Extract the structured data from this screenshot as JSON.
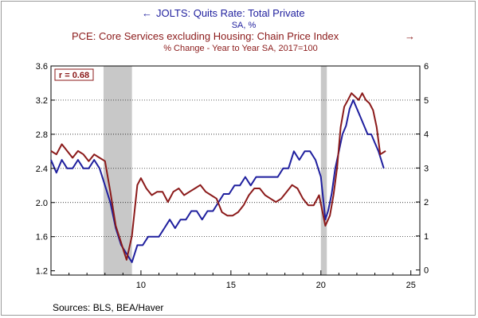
{
  "chart_data": {
    "type": "line",
    "legend": [
      {
        "arrow": "←",
        "text": "JOLTS: Quits Rate: Total Private",
        "sub": "SA, %",
        "color": "#1f1f9e",
        "axis": "left"
      },
      {
        "arrow": "→",
        "text": "PCE: Core Services excluding Housing: Chain Price Index",
        "sub": "% Change - Year to Year   SA, 2017=100",
        "color": "#8b1a1a",
        "axis": "right"
      }
    ],
    "correlation_label": "r = 0.68",
    "source": "Sources:  BLS, BEA/Haver",
    "x_range": [
      2005,
      2025.5
    ],
    "x_ticks": [
      {
        "v": 2010,
        "label": "10"
      },
      {
        "v": 2015,
        "label": "15"
      },
      {
        "v": 2020,
        "label": "20"
      },
      {
        "v": 2025,
        "label": "25"
      }
    ],
    "y_left": {
      "range": [
        1.15,
        3.6
      ],
      "ticks": [
        "3.6",
        "3.2",
        "2.8",
        "2.4",
        "2.0",
        "1.6",
        "1.2"
      ]
    },
    "y_right": {
      "range": [
        -0.15,
        6.0
      ],
      "ticks": [
        "6",
        "5",
        "4",
        "3",
        "2",
        "1",
        "0"
      ]
    },
    "grid": "horizontal dotted",
    "recessions": [
      [
        2007.92,
        2009.5
      ],
      [
        2020.0,
        2020.33
      ]
    ],
    "series": [
      {
        "name": "JOLTS: Quits Rate: Total Private",
        "axis": "left",
        "color": "#1f1f9e",
        "x": [
          2005.0,
          2005.3,
          2005.6,
          2005.9,
          2006.2,
          2006.5,
          2006.8,
          2007.1,
          2007.4,
          2007.7,
          2008.0,
          2008.3,
          2008.6,
          2008.9,
          2009.2,
          2009.5,
          2009.8,
          2010.1,
          2010.4,
          2010.7,
          2011.0,
          2011.3,
          2011.6,
          2011.9,
          2012.2,
          2012.5,
          2012.8,
          2013.1,
          2013.4,
          2013.7,
          2014.0,
          2014.3,
          2014.6,
          2014.9,
          2015.2,
          2015.5,
          2015.8,
          2016.1,
          2016.4,
          2016.7,
          2017.0,
          2017.3,
          2017.6,
          2017.9,
          2018.2,
          2018.5,
          2018.8,
          2019.1,
          2019.4,
          2019.7,
          2020.0,
          2020.25,
          2020.4,
          2020.6,
          2020.8,
          2021.0,
          2021.2,
          2021.4,
          2021.6,
          2021.8,
          2022.0,
          2022.2,
          2022.4,
          2022.6,
          2022.8,
          2023.0,
          2023.2,
          2023.5
        ],
        "values": [
          2.5,
          2.35,
          2.5,
          2.4,
          2.4,
          2.5,
          2.4,
          2.4,
          2.5,
          2.4,
          2.2,
          2.0,
          1.7,
          1.5,
          1.4,
          1.3,
          1.5,
          1.5,
          1.6,
          1.6,
          1.6,
          1.7,
          1.8,
          1.7,
          1.8,
          1.8,
          1.9,
          1.9,
          1.8,
          1.9,
          1.9,
          2.0,
          2.1,
          2.1,
          2.2,
          2.2,
          2.3,
          2.2,
          2.3,
          2.3,
          2.3,
          2.3,
          2.3,
          2.4,
          2.4,
          2.6,
          2.5,
          2.6,
          2.6,
          2.5,
          2.3,
          1.8,
          1.9,
          2.1,
          2.4,
          2.6,
          2.8,
          2.9,
          3.1,
          3.2,
          3.1,
          3.0,
          2.9,
          2.8,
          2.8,
          2.7,
          2.6,
          2.4
        ]
      },
      {
        "name": "PCE: Core Services excluding Housing: Chain Price Index",
        "axis": "right",
        "color": "#8b1a1a",
        "x": [
          2005.0,
          2005.3,
          2005.6,
          2005.9,
          2006.2,
          2006.5,
          2006.8,
          2007.1,
          2007.4,
          2007.7,
          2008.0,
          2008.3,
          2008.6,
          2008.9,
          2009.2,
          2009.5,
          2009.8,
          2010.0,
          2010.3,
          2010.6,
          2010.9,
          2011.2,
          2011.5,
          2011.8,
          2012.1,
          2012.4,
          2012.7,
          2013.0,
          2013.3,
          2013.6,
          2013.9,
          2014.2,
          2014.5,
          2014.8,
          2015.1,
          2015.4,
          2015.7,
          2016.0,
          2016.3,
          2016.6,
          2016.9,
          2017.2,
          2017.5,
          2017.8,
          2018.1,
          2018.4,
          2018.7,
          2019.0,
          2019.3,
          2019.6,
          2019.9,
          2020.25,
          2020.5,
          2020.7,
          2020.9,
          2021.1,
          2021.3,
          2021.5,
          2021.7,
          2021.9,
          2022.1,
          2022.3,
          2022.5,
          2022.7,
          2022.9,
          2023.1,
          2023.3,
          2023.6
        ],
        "values": [
          3.5,
          3.4,
          3.7,
          3.5,
          3.3,
          3.5,
          3.4,
          3.2,
          3.4,
          3.3,
          3.2,
          2.3,
          1.3,
          0.8,
          0.3,
          1.0,
          2.5,
          2.7,
          2.4,
          2.2,
          2.3,
          2.3,
          2.0,
          2.3,
          2.4,
          2.2,
          2.3,
          2.4,
          2.5,
          2.3,
          2.2,
          2.1,
          1.7,
          1.6,
          1.6,
          1.7,
          1.9,
          2.2,
          2.4,
          2.4,
          2.2,
          2.1,
          2.0,
          2.1,
          2.3,
          2.5,
          2.4,
          2.1,
          1.9,
          1.9,
          2.2,
          1.3,
          1.6,
          2.2,
          3.0,
          4.2,
          4.8,
          5.0,
          5.2,
          5.1,
          5.0,
          5.2,
          5.0,
          4.9,
          4.7,
          4.2,
          3.4,
          3.5
        ]
      }
    ]
  }
}
